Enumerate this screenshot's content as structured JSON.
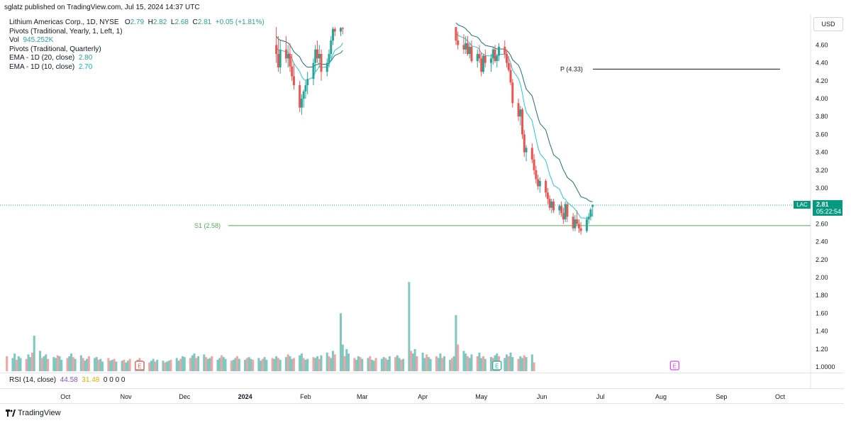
{
  "header": {
    "publisher_text": "sglatz published on TradingView.com, Jul 15, 2024 14:37 UTC"
  },
  "legend": {
    "symbol_line": "Lithium Americas Corp., 1D, NYSE",
    "ohlc": {
      "o_label": "O",
      "o": "2.79",
      "h_label": "H",
      "h": "2.82",
      "l_label": "L",
      "l": "2.68",
      "c_label": "C",
      "c": "2.81",
      "change": "+0.05 (+1.81%)"
    },
    "pivots_yearly": "Pivots (Traditional, Yearly, 1, Left, 1)",
    "vol_label": "Vol",
    "vol_value": "945.252K",
    "pivots_quarterly": "Pivots (Traditional, Quarterly)",
    "ema20_label": "EMA - 1D (20, close)",
    "ema20_value": "2.80",
    "ema10_label": "EMA - 1D (10, close)",
    "ema10_value": "2.70"
  },
  "price_axis": {
    "currency": "USD",
    "last_price": "2.81",
    "countdown": "05:22:54",
    "symbol_tag": "LAC",
    "volume_axis_label": "1.0000"
  },
  "rsi": {
    "label": "RSI (14, close)",
    "value1": "44.58",
    "value2": "31.48",
    "zeros": "0 0 0 0"
  },
  "footer": {
    "brand": "TradingView"
  },
  "colors": {
    "up": "#26a69a",
    "down": "#ef5350",
    "vol_up": "#7fc8bf",
    "vol_down": "#f5a3a2",
    "ema20": "#1f6f78",
    "ema10": "#26c6da",
    "pivot_p": "#131722",
    "pivot_s1": "#4caf50"
  },
  "chart_data": {
    "type": "candlestick",
    "price_scale": {
      "ylim": [
        1.0,
        4.8
      ],
      "ticks": [
        "4.60",
        "4.40",
        "4.20",
        "4.00",
        "3.80",
        "3.60",
        "3.40",
        "3.20",
        "3.00",
        "2.80",
        "2.60",
        "2.40",
        "2.20",
        "2.00",
        "1.80",
        "1.60",
        "1.40",
        "1.20",
        "1.0000"
      ]
    },
    "time_axis_labels": [
      "Oct",
      "Nov",
      "Dec",
      "2024",
      "Feb",
      "Mar",
      "Apr",
      "May",
      "Jun",
      "Jul",
      "Aug",
      "Sep",
      "Oct"
    ],
    "pivot_lines": [
      {
        "label": "P (4.33)",
        "value": 4.33
      },
      {
        "label": "S1 (2.58)",
        "value": 2.58
      }
    ],
    "earnings_markers": [
      "E",
      "E",
      "E"
    ],
    "last_price_line": 2.81,
    "segments": [
      {
        "name": "segment-1",
        "start_date": "2024-01-17",
        "candles": [
          [
            4.6,
            4.8,
            4.4,
            4.5
          ],
          [
            4.5,
            4.7,
            4.3,
            4.35
          ],
          [
            4.35,
            4.65,
            4.28,
            4.55
          ],
          [
            4.55,
            4.7,
            4.4,
            4.45
          ],
          [
            4.45,
            4.6,
            4.35,
            4.5
          ],
          [
            4.5,
            4.62,
            4.3,
            4.36
          ],
          [
            4.36,
            4.5,
            4.2,
            4.25
          ],
          [
            4.25,
            4.4,
            4.1,
            4.15
          ],
          [
            4.15,
            4.2,
            3.85,
            3.9
          ],
          [
            3.9,
            4.05,
            3.82,
            4.0
          ],
          [
            4.0,
            4.1,
            3.9,
            4.08
          ],
          [
            4.08,
            4.2,
            4.0,
            4.15
          ],
          [
            4.15,
            4.3,
            4.05,
            4.22
          ],
          [
            4.22,
            4.45,
            4.15,
            4.4
          ],
          [
            4.4,
            4.6,
            4.3,
            4.55
          ],
          [
            4.55,
            4.65,
            4.4,
            4.45
          ],
          [
            4.45,
            4.6,
            4.35,
            4.5
          ],
          [
            4.5,
            4.55,
            4.2,
            4.3
          ],
          [
            4.3,
            4.45,
            4.25,
            4.4
          ],
          [
            4.4,
            4.55,
            4.35,
            4.5
          ],
          [
            4.5,
            4.7,
            4.45,
            4.65
          ],
          [
            4.65,
            4.8,
            4.6,
            4.78
          ],
          [
            4.78,
            4.8,
            4.7,
            4.75
          ],
          [
            4.75,
            4.8,
            4.7,
            4.79
          ],
          [
            4.79,
            4.8,
            4.72,
            4.78
          ]
        ]
      },
      {
        "name": "segment-2",
        "start_date": "2024-04-18",
        "candles": [
          [
            4.8,
            4.8,
            4.6,
            4.65
          ],
          [
            4.65,
            4.75,
            4.55,
            4.6
          ],
          [
            4.6,
            4.72,
            4.5,
            4.55
          ],
          [
            4.55,
            4.7,
            4.5,
            4.62
          ],
          [
            4.62,
            4.7,
            4.48,
            4.5
          ],
          [
            4.5,
            4.62,
            4.45,
            4.58
          ],
          [
            4.58,
            4.65,
            4.4,
            4.42
          ],
          [
            4.42,
            4.55,
            4.35,
            4.5
          ],
          [
            4.5,
            4.6,
            4.4,
            4.45
          ],
          [
            4.45,
            4.52,
            4.25,
            4.3
          ],
          [
            4.3,
            4.5,
            4.28,
            4.48
          ],
          [
            4.48,
            4.55,
            4.35,
            4.4
          ],
          [
            4.4,
            4.5,
            4.3,
            4.45
          ],
          [
            4.45,
            4.58,
            4.38,
            4.55
          ],
          [
            4.55,
            4.6,
            4.4,
            4.42
          ],
          [
            4.42,
            4.5,
            4.35,
            4.48
          ],
          [
            4.48,
            4.62,
            4.42,
            4.58
          ],
          [
            4.58,
            4.65,
            4.45,
            4.5
          ],
          [
            4.5,
            4.55,
            4.35,
            4.4
          ],
          [
            4.4,
            4.48,
            4.3,
            4.32
          ],
          [
            4.32,
            4.4,
            4.15,
            4.18
          ],
          [
            4.18,
            4.22,
            3.9,
            3.95
          ],
          [
            3.95,
            4.0,
            3.75,
            3.8
          ],
          [
            3.8,
            3.92,
            3.7,
            3.88
          ],
          [
            3.88,
            3.9,
            3.55,
            3.6
          ],
          [
            3.6,
            3.65,
            3.35,
            3.4
          ],
          [
            3.4,
            3.48,
            3.3,
            3.45
          ],
          [
            3.45,
            3.5,
            3.28,
            3.32
          ],
          [
            3.32,
            3.38,
            3.15,
            3.2
          ],
          [
            3.2,
            3.25,
            3.05,
            3.1
          ],
          [
            3.1,
            3.15,
            2.98,
            3.02
          ],
          [
            3.02,
            3.12,
            2.95,
            3.08
          ],
          [
            3.08,
            3.1,
            2.9,
            2.95
          ],
          [
            2.95,
            3.0,
            2.82,
            2.88
          ],
          [
            2.88,
            2.92,
            2.75,
            2.78
          ],
          [
            2.78,
            2.88,
            2.72,
            2.85
          ],
          [
            2.85,
            2.88,
            2.72,
            2.75
          ],
          [
            2.75,
            2.82,
            2.7,
            2.8
          ],
          [
            2.8,
            2.85,
            2.68,
            2.72
          ],
          [
            2.72,
            2.78,
            2.6,
            2.65
          ],
          [
            2.65,
            2.85,
            2.62,
            2.82
          ],
          [
            2.82,
            2.84,
            2.62,
            2.68
          ],
          [
            2.68,
            2.72,
            2.52,
            2.55
          ],
          [
            2.55,
            2.7,
            2.52,
            2.65
          ],
          [
            2.65,
            2.75,
            2.58,
            2.6
          ],
          [
            2.6,
            2.65,
            2.5,
            2.55
          ],
          [
            2.55,
            2.62,
            2.48,
            2.52
          ],
          [
            2.52,
            2.68,
            2.5,
            2.65
          ],
          [
            2.65,
            2.72,
            2.6,
            2.68
          ],
          [
            2.68,
            2.78,
            2.64,
            2.76
          ],
          [
            2.79,
            2.82,
            2.68,
            2.81
          ]
        ]
      }
    ],
    "volume_bars": [
      1.12,
      1.1,
      1.15,
      1.08,
      1.12,
      1.1,
      1.09,
      1.14,
      1.11,
      1.16,
      1.35,
      1.18,
      1.1,
      1.12,
      1.14,
      1.09,
      1.11,
      1.1,
      1.13,
      1.12,
      1.08,
      1.1,
      1.12,
      1.15,
      1.11,
      1.09,
      1.13,
      1.1,
      1.07,
      1.09,
      1.12,
      1.1,
      1.11,
      1.08,
      1.09,
      1.06,
      1.1,
      1.07,
      1.08,
      1.09,
      1.06,
      1.07,
      1.08,
      1.05,
      1.07,
      1.09,
      1.06,
      1.08,
      1.1,
      1.07,
      1.06,
      1.05,
      1.07,
      1.09,
      1.06,
      1.08,
      1.07,
      1.05,
      1.06,
      1.07,
      1.08,
      1.1,
      1.07,
      1.09,
      1.12,
      1.11,
      1.1,
      1.13,
      1.15,
      1.1,
      1.12,
      1.14,
      1.11,
      1.09,
      1.1,
      1.12,
      1.08,
      1.1,
      1.13,
      1.11,
      1.09,
      1.07,
      1.08,
      1.1,
      1.12,
      1.09,
      1.08,
      1.1,
      1.11,
      1.09,
      1.08,
      1.1,
      1.07,
      1.09,
      1.11,
      1.08,
      1.1,
      1.09,
      1.12,
      1.1,
      1.08,
      1.11,
      1.14,
      1.12,
      1.09,
      1.1,
      1.13,
      1.15,
      1.1,
      1.08,
      1.09,
      1.11,
      1.1,
      1.12,
      1.09,
      1.13,
      1.16,
      1.12,
      1.1,
      1.18,
      1.14,
      1.6,
      1.25,
      1.12,
      1.2,
      1.15,
      1.1,
      1.08,
      1.12,
      1.11,
      1.09,
      1.1,
      1.12,
      1.08,
      1.07,
      1.1,
      1.09,
      1.11,
      1.1,
      1.08,
      1.12,
      1.11,
      1.13,
      1.1,
      1.08,
      1.09,
      1.95,
      1.18,
      1.15,
      1.2,
      1.12,
      1.16,
      1.1,
      1.14,
      1.11,
      1.09,
      1.12,
      1.1,
      1.15,
      1.1,
      1.12,
      1.08,
      1.1,
      1.12,
      1.58,
      1.25,
      1.18,
      1.15,
      1.12,
      1.1,
      1.14,
      1.12,
      1.16,
      1.1,
      1.12,
      1.09,
      1.11,
      1.1,
      1.13,
      1.15,
      1.12,
      1.1,
      1.14,
      1.12,
      1.16,
      1.11,
      1.09,
      1.12,
      1.1,
      1.13,
      1.11,
      1.14,
      1.05
    ]
  }
}
